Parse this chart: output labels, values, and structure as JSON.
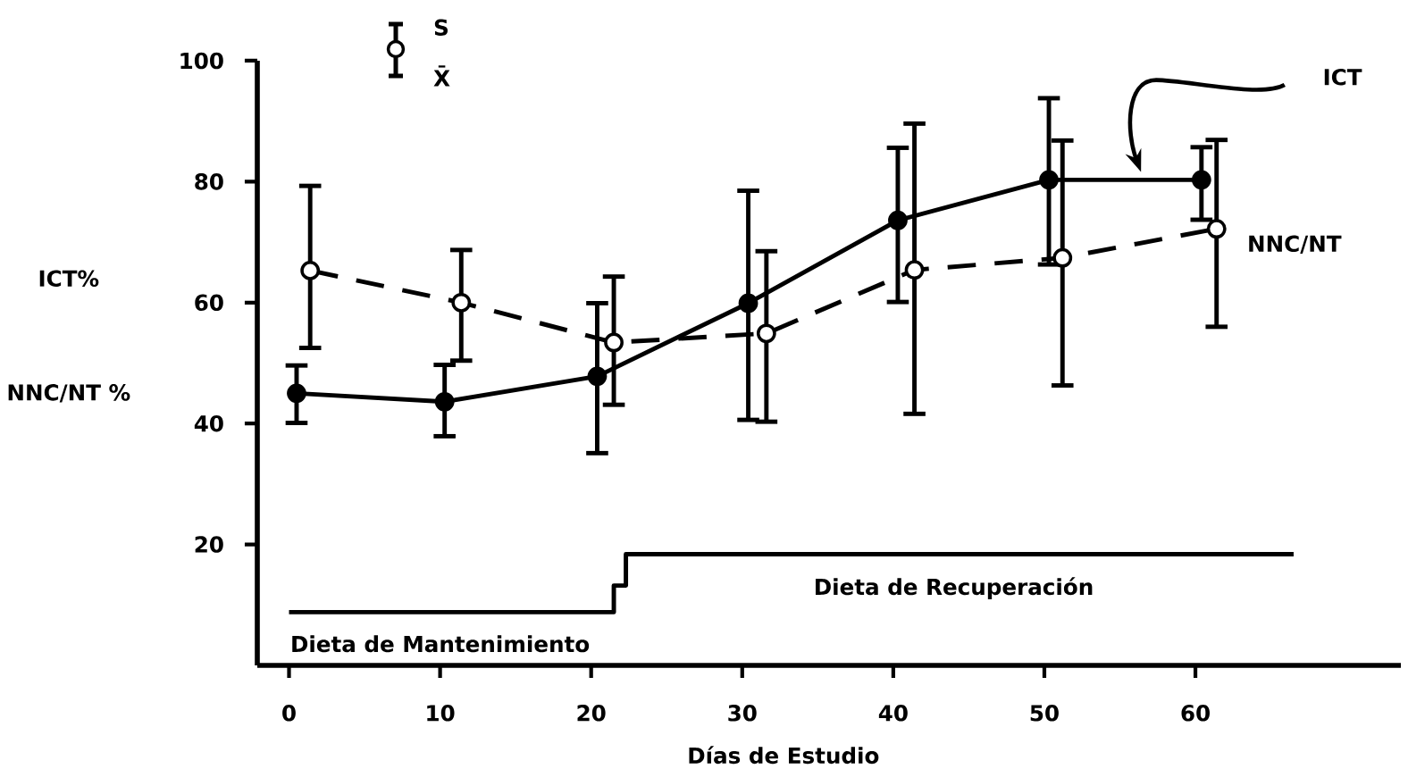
{
  "chart_data": {
    "type": "line",
    "xlabel": "Días de Estudio",
    "ylabel": "ICT%",
    "xlim": [
      -2.1,
      73.6
    ],
    "ylim": [
      0,
      100
    ],
    "xticks": [
      0,
      10,
      20,
      30,
      40,
      50,
      60
    ],
    "yticks": [
      20,
      40,
      60,
      80,
      100
    ],
    "marker": "circle",
    "series": [
      {
        "name": "ICT",
        "color": "#000000",
        "line_style": "solid",
        "x": [
          0.5,
          10.3,
          20.4,
          30.4,
          40.3,
          50.3,
          60.4
        ],
        "values": [
          45,
          43.6,
          47.8,
          59.9,
          73.6,
          80.3,
          80.3
        ],
        "errors": [
          [
            40.1,
            49.6
          ],
          [
            37.9,
            49.7
          ],
          [
            35.1,
            59.9
          ],
          [
            40.6,
            78.5
          ],
          [
            60.1,
            85.6
          ],
          [
            66.3,
            93.8
          ],
          [
            73.7,
            85.7
          ]
        ]
      },
      {
        "name": "NNC/NT",
        "color": "#000000",
        "line_style": "dashed",
        "x": [
          1.4,
          11.4,
          21.5,
          31.6,
          41.4,
          51.2,
          61.4
        ],
        "values": [
          65.3,
          60,
          53.4,
          54.9,
          65.4,
          67.4,
          72.2
        ],
        "errors": [
          [
            52.5,
            79.3
          ],
          [
            50.4,
            68.7
          ],
          [
            43.1,
            64.3
          ],
          [
            40.3,
            68.5
          ],
          [
            41.6,
            89.6
          ],
          [
            46.3,
            86.8
          ],
          [
            56,
            86.9
          ]
        ]
      },
      {
        "type": "step",
        "color": "#000000",
        "line_style": "solid",
        "marker": "none",
        "x": [
          0,
          21.5,
          22.3,
          66.5
        ],
        "values": [
          8.8,
          13.2,
          18.4,
          18.4
        ]
      }
    ],
    "annotations": [
      "NNC/NT %",
      {
        "text": "Dieta de Mantenimiento",
        "x": 10,
        "y": 8.8
      },
      {
        "text": "Dieta de Recuperación",
        "x": 44,
        "y": 18.4
      },
      "S",
      "X̄"
    ]
  }
}
